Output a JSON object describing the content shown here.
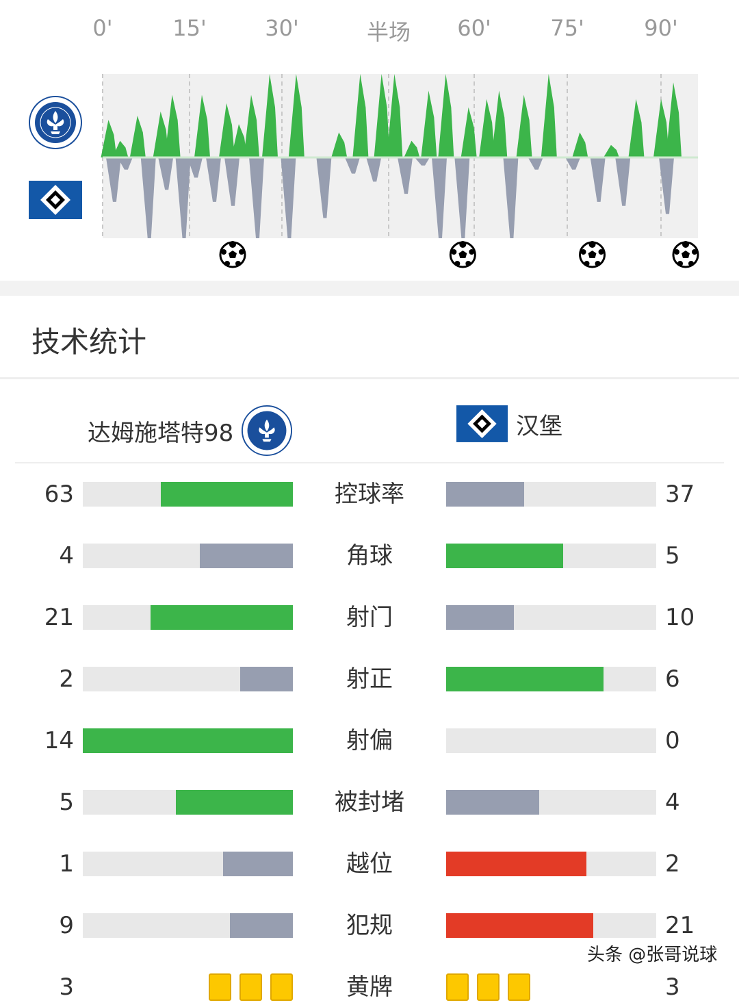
{
  "timeline": {
    "ticks": [
      {
        "label": "0'",
        "minute": 0
      },
      {
        "label": "15'",
        "minute": 15
      },
      {
        "label": "30'",
        "minute": 30
      },
      {
        "label": "半场",
        "minute": 45
      },
      {
        "label": "60'",
        "minute": 60
      },
      {
        "label": "75'",
        "minute": 75
      },
      {
        "label": "90'",
        "minute": 90
      }
    ],
    "home_color": "#3cb54a",
    "away_color": "#979eb0",
    "bg_color": "#f0f0f0",
    "home_peaks": [
      [
        1,
        0.45
      ],
      [
        3,
        0.2
      ],
      [
        6,
        0.5
      ],
      [
        10,
        0.55
      ],
      [
        12,
        0.75
      ],
      [
        17,
        0.75
      ],
      [
        21,
        0.65
      ],
      [
        23,
        0.4
      ],
      [
        25,
        0.75
      ],
      [
        28,
        1.0
      ],
      [
        32,
        1.0
      ],
      [
        38,
        0.3
      ],
      [
        41,
        1.0
      ],
      [
        44,
        1.0
      ],
      [
        46,
        1.0
      ],
      [
        49,
        0.2
      ],
      [
        52,
        0.8
      ],
      [
        55,
        1.0
      ],
      [
        59,
        0.6
      ],
      [
        62,
        0.7
      ],
      [
        64,
        0.8
      ],
      [
        68,
        0.75
      ],
      [
        72,
        1.0
      ],
      [
        77,
        0.3
      ],
      [
        82,
        0.15
      ],
      [
        86,
        0.7
      ],
      [
        90,
        0.7
      ],
      [
        92,
        0.9
      ]
    ],
    "away_peaks": [
      [
        2,
        0.55
      ],
      [
        4,
        0.15
      ],
      [
        8,
        1.0
      ],
      [
        11,
        0.4
      ],
      [
        14,
        1.0
      ],
      [
        16,
        0.25
      ],
      [
        19,
        0.55
      ],
      [
        22,
        0.6
      ],
      [
        26,
        1.0
      ],
      [
        31,
        1.0
      ],
      [
        36,
        0.75
      ],
      [
        40,
        0.2
      ],
      [
        43,
        0.3
      ],
      [
        48,
        0.45
      ],
      [
        51,
        0.1
      ],
      [
        54,
        1.0
      ],
      [
        58,
        1.0
      ],
      [
        66,
        1.0
      ],
      [
        70,
        0.15
      ],
      [
        76,
        0.15
      ],
      [
        80,
        0.55
      ],
      [
        84,
        0.6
      ],
      [
        91,
        0.7
      ]
    ],
    "goals": [
      22,
      58,
      79,
      94
    ]
  },
  "section_title": "技术统计",
  "home": {
    "name": "达姆施塔特98",
    "logo_text": "SPORTVEREIN DARMSTADT 1898 e.V."
  },
  "away": {
    "name": "汉堡"
  },
  "colors": {
    "better": "#3cb54a",
    "worse": "#979eb0",
    "negative": "#e33b26",
    "yellow": "#fdc800"
  },
  "stats": [
    {
      "label": "控球率",
      "home": "63",
      "away": "37",
      "h": 63,
      "a": 37,
      "hc": "better",
      "ac": "worse"
    },
    {
      "label": "角球",
      "home": "4",
      "away": "5",
      "h": 4,
      "a": 5,
      "hc": "worse",
      "ac": "better"
    },
    {
      "label": "射门",
      "home": "21",
      "away": "10",
      "h": 21,
      "a": 10,
      "hc": "better",
      "ac": "worse"
    },
    {
      "label": "射正",
      "home": "2",
      "away": "6",
      "h": 2,
      "a": 6,
      "hc": "worse",
      "ac": "better"
    },
    {
      "label": "射偏",
      "home": "14",
      "away": "0",
      "h": 14,
      "a": 0,
      "hc": "better",
      "ac": "worse"
    },
    {
      "label": "被封堵",
      "home": "5",
      "away": "4",
      "h": 5,
      "a": 4,
      "hc": "better",
      "ac": "worse"
    },
    {
      "label": "越位",
      "home": "1",
      "away": "2",
      "h": 1,
      "a": 2,
      "hc": "worse",
      "ac": "negative"
    },
    {
      "label": "犯规",
      "home": "9",
      "away": "21",
      "h": 9,
      "a": 21,
      "hc": "worse",
      "ac": "negative"
    }
  ],
  "yellow": {
    "label": "黄牌",
    "home": "3",
    "away": "3"
  },
  "watermark": "头条 @张哥说球"
}
